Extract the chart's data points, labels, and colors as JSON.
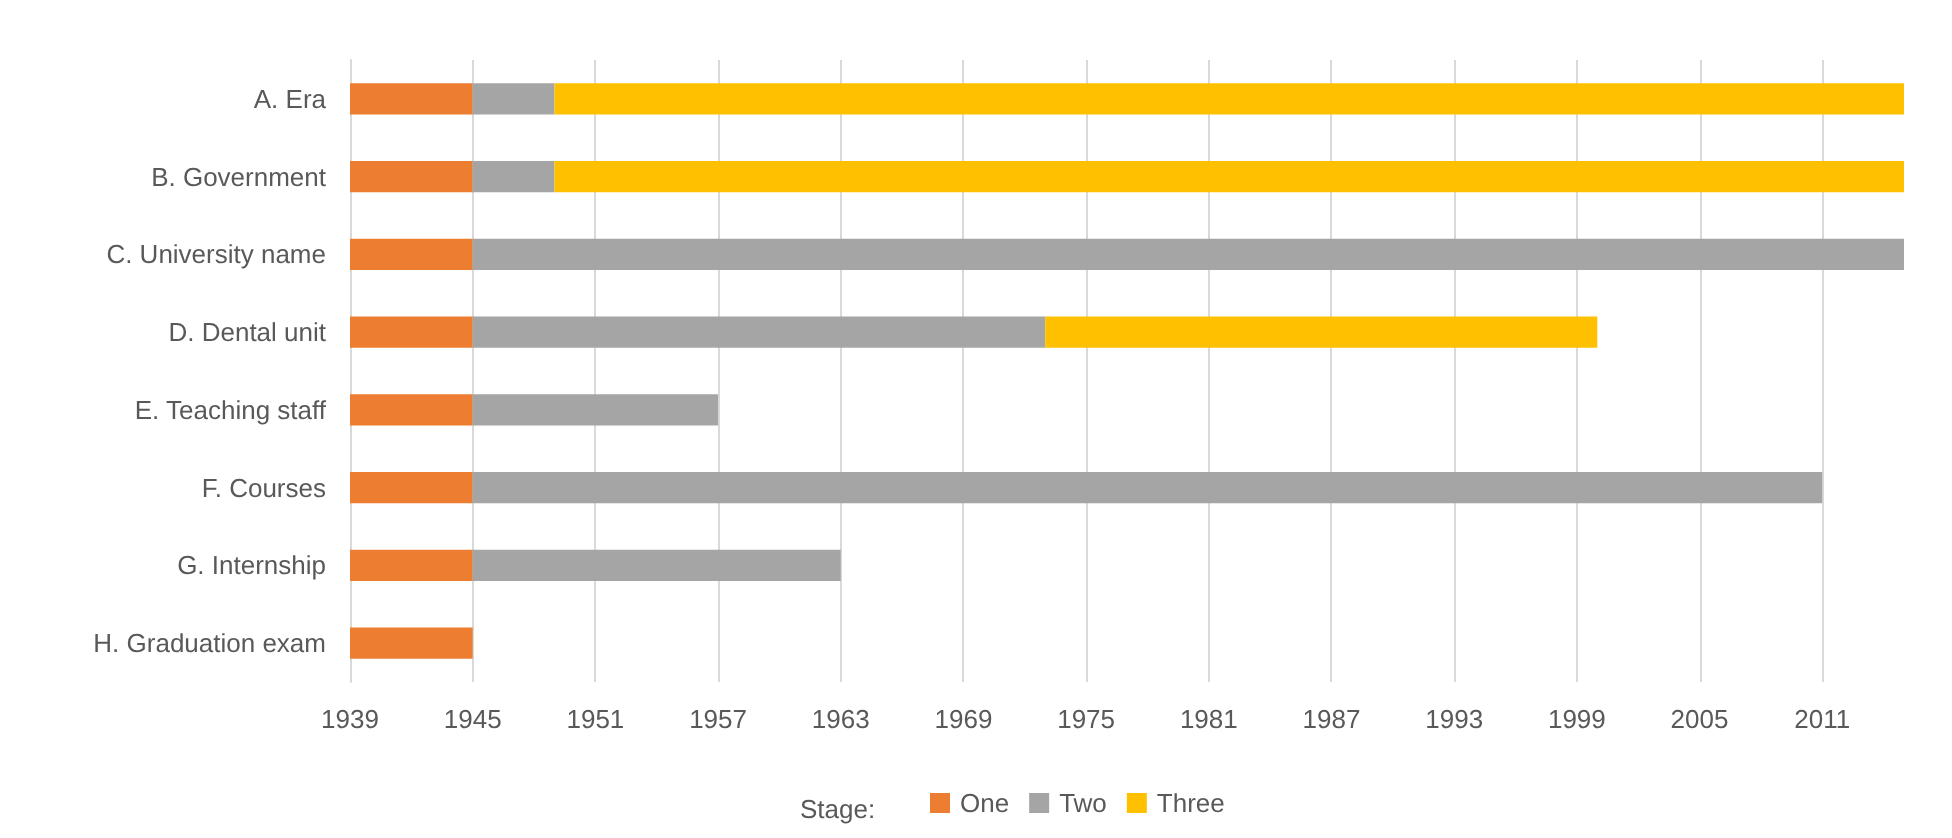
{
  "chart_data": {
    "type": "bar",
    "orientation": "horizontal",
    "categories": [
      "A. Era",
      "B. Government",
      "C. University name",
      "D. Dental unit",
      "E. Teaching staff",
      "F. Courses",
      "G. Internship",
      "H. Graduation exam"
    ],
    "series": [
      {
        "name": "One",
        "color": "#ed7d31",
        "base": [
          1939,
          1939,
          1939,
          1939,
          1939,
          1939,
          1939,
          1939
        ],
        "values": [
          6,
          6,
          6,
          6,
          6,
          6,
          6,
          6
        ]
      },
      {
        "name": "Two",
        "color": "#a5a5a5",
        "base": [
          1945,
          1945,
          1945,
          1945,
          1945,
          1945,
          1945,
          null
        ],
        "values": [
          4,
          4,
          70,
          28,
          12,
          66,
          18,
          null
        ]
      },
      {
        "name": "Three",
        "color": "#ffc000",
        "base": [
          1949,
          1949,
          null,
          1973,
          null,
          null,
          null,
          null
        ],
        "values": [
          66,
          66,
          null,
          27,
          null,
          null,
          null,
          null
        ]
      }
    ],
    "xlim": [
      1939,
      2015
    ],
    "xticks": [
      1939,
      1945,
      1951,
      1957,
      1963,
      1969,
      1975,
      1981,
      1987,
      1993,
      1999,
      2005,
      2011
    ],
    "grid": "x",
    "legend": "bottom",
    "legend_title": "Stage:"
  }
}
